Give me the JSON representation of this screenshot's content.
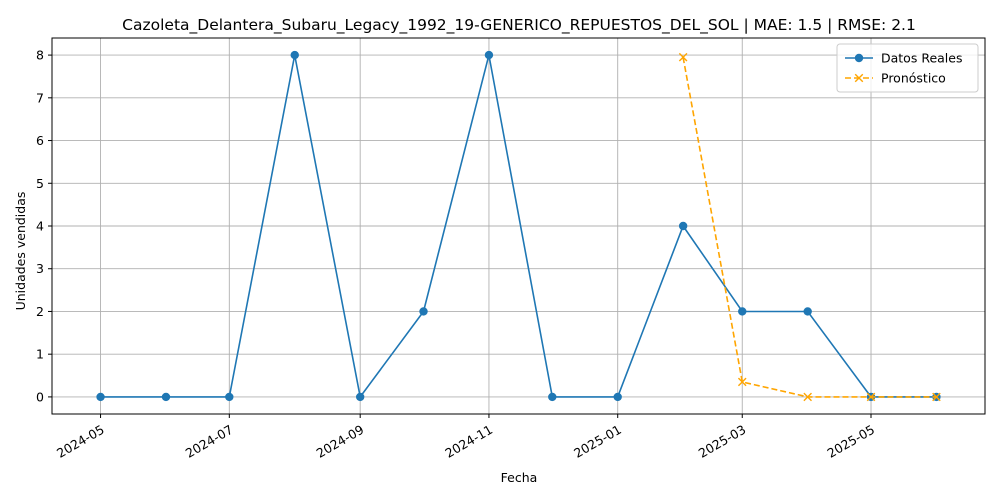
{
  "chart_data": {
    "type": "line",
    "title": "Cazoleta_Delantera_Subaru_Legacy_1992_19-GENERICO_REPUESTOS_DEL_SOL | MAE: 1.5 | RMSE: 2.1",
    "xlabel": "Fecha",
    "ylabel": "Unidades vendidas",
    "x_ticks": [
      "2024-05",
      "2024-07",
      "2024-09",
      "2024-11",
      "2025-01",
      "2025-03",
      "2025-05"
    ],
    "y_ticks": [
      "0",
      "1",
      "2",
      "3",
      "4",
      "5",
      "6",
      "7",
      "8"
    ],
    "xlim": [
      "2024-04-08",
      "2025-06-24"
    ],
    "ylim": [
      -0.4,
      8.4
    ],
    "grid": true,
    "legend_position": "top-right",
    "series": [
      {
        "name": "Datos Reales",
        "color": "#1f77b4",
        "style": "solid",
        "marker": "circle",
        "points": [
          {
            "x": "2024-05-01",
            "y": 0
          },
          {
            "x": "2024-06-01",
            "y": 0
          },
          {
            "x": "2024-07-01",
            "y": 0
          },
          {
            "x": "2024-08-01",
            "y": 8
          },
          {
            "x": "2024-09-01",
            "y": 0
          },
          {
            "x": "2024-10-01",
            "y": 2
          },
          {
            "x": "2024-11-01",
            "y": 8
          },
          {
            "x": "2024-12-01",
            "y": 0
          },
          {
            "x": "2025-01-01",
            "y": 0
          },
          {
            "x": "2025-02-01",
            "y": 4
          },
          {
            "x": "2025-03-01",
            "y": 2
          },
          {
            "x": "2025-04-01",
            "y": 2
          },
          {
            "x": "2025-05-01",
            "y": 0
          },
          {
            "x": "2025-06-01",
            "y": 0
          }
        ]
      },
      {
        "name": "Pronóstico",
        "color": "#ffa500",
        "style": "dashed",
        "marker": "x",
        "points": [
          {
            "x": "2025-02-01",
            "y": 7.95
          },
          {
            "x": "2025-03-01",
            "y": 0.35
          },
          {
            "x": "2025-04-01",
            "y": 0
          },
          {
            "x": "2025-05-01",
            "y": 0
          },
          {
            "x": "2025-06-01",
            "y": 0
          }
        ]
      }
    ]
  }
}
